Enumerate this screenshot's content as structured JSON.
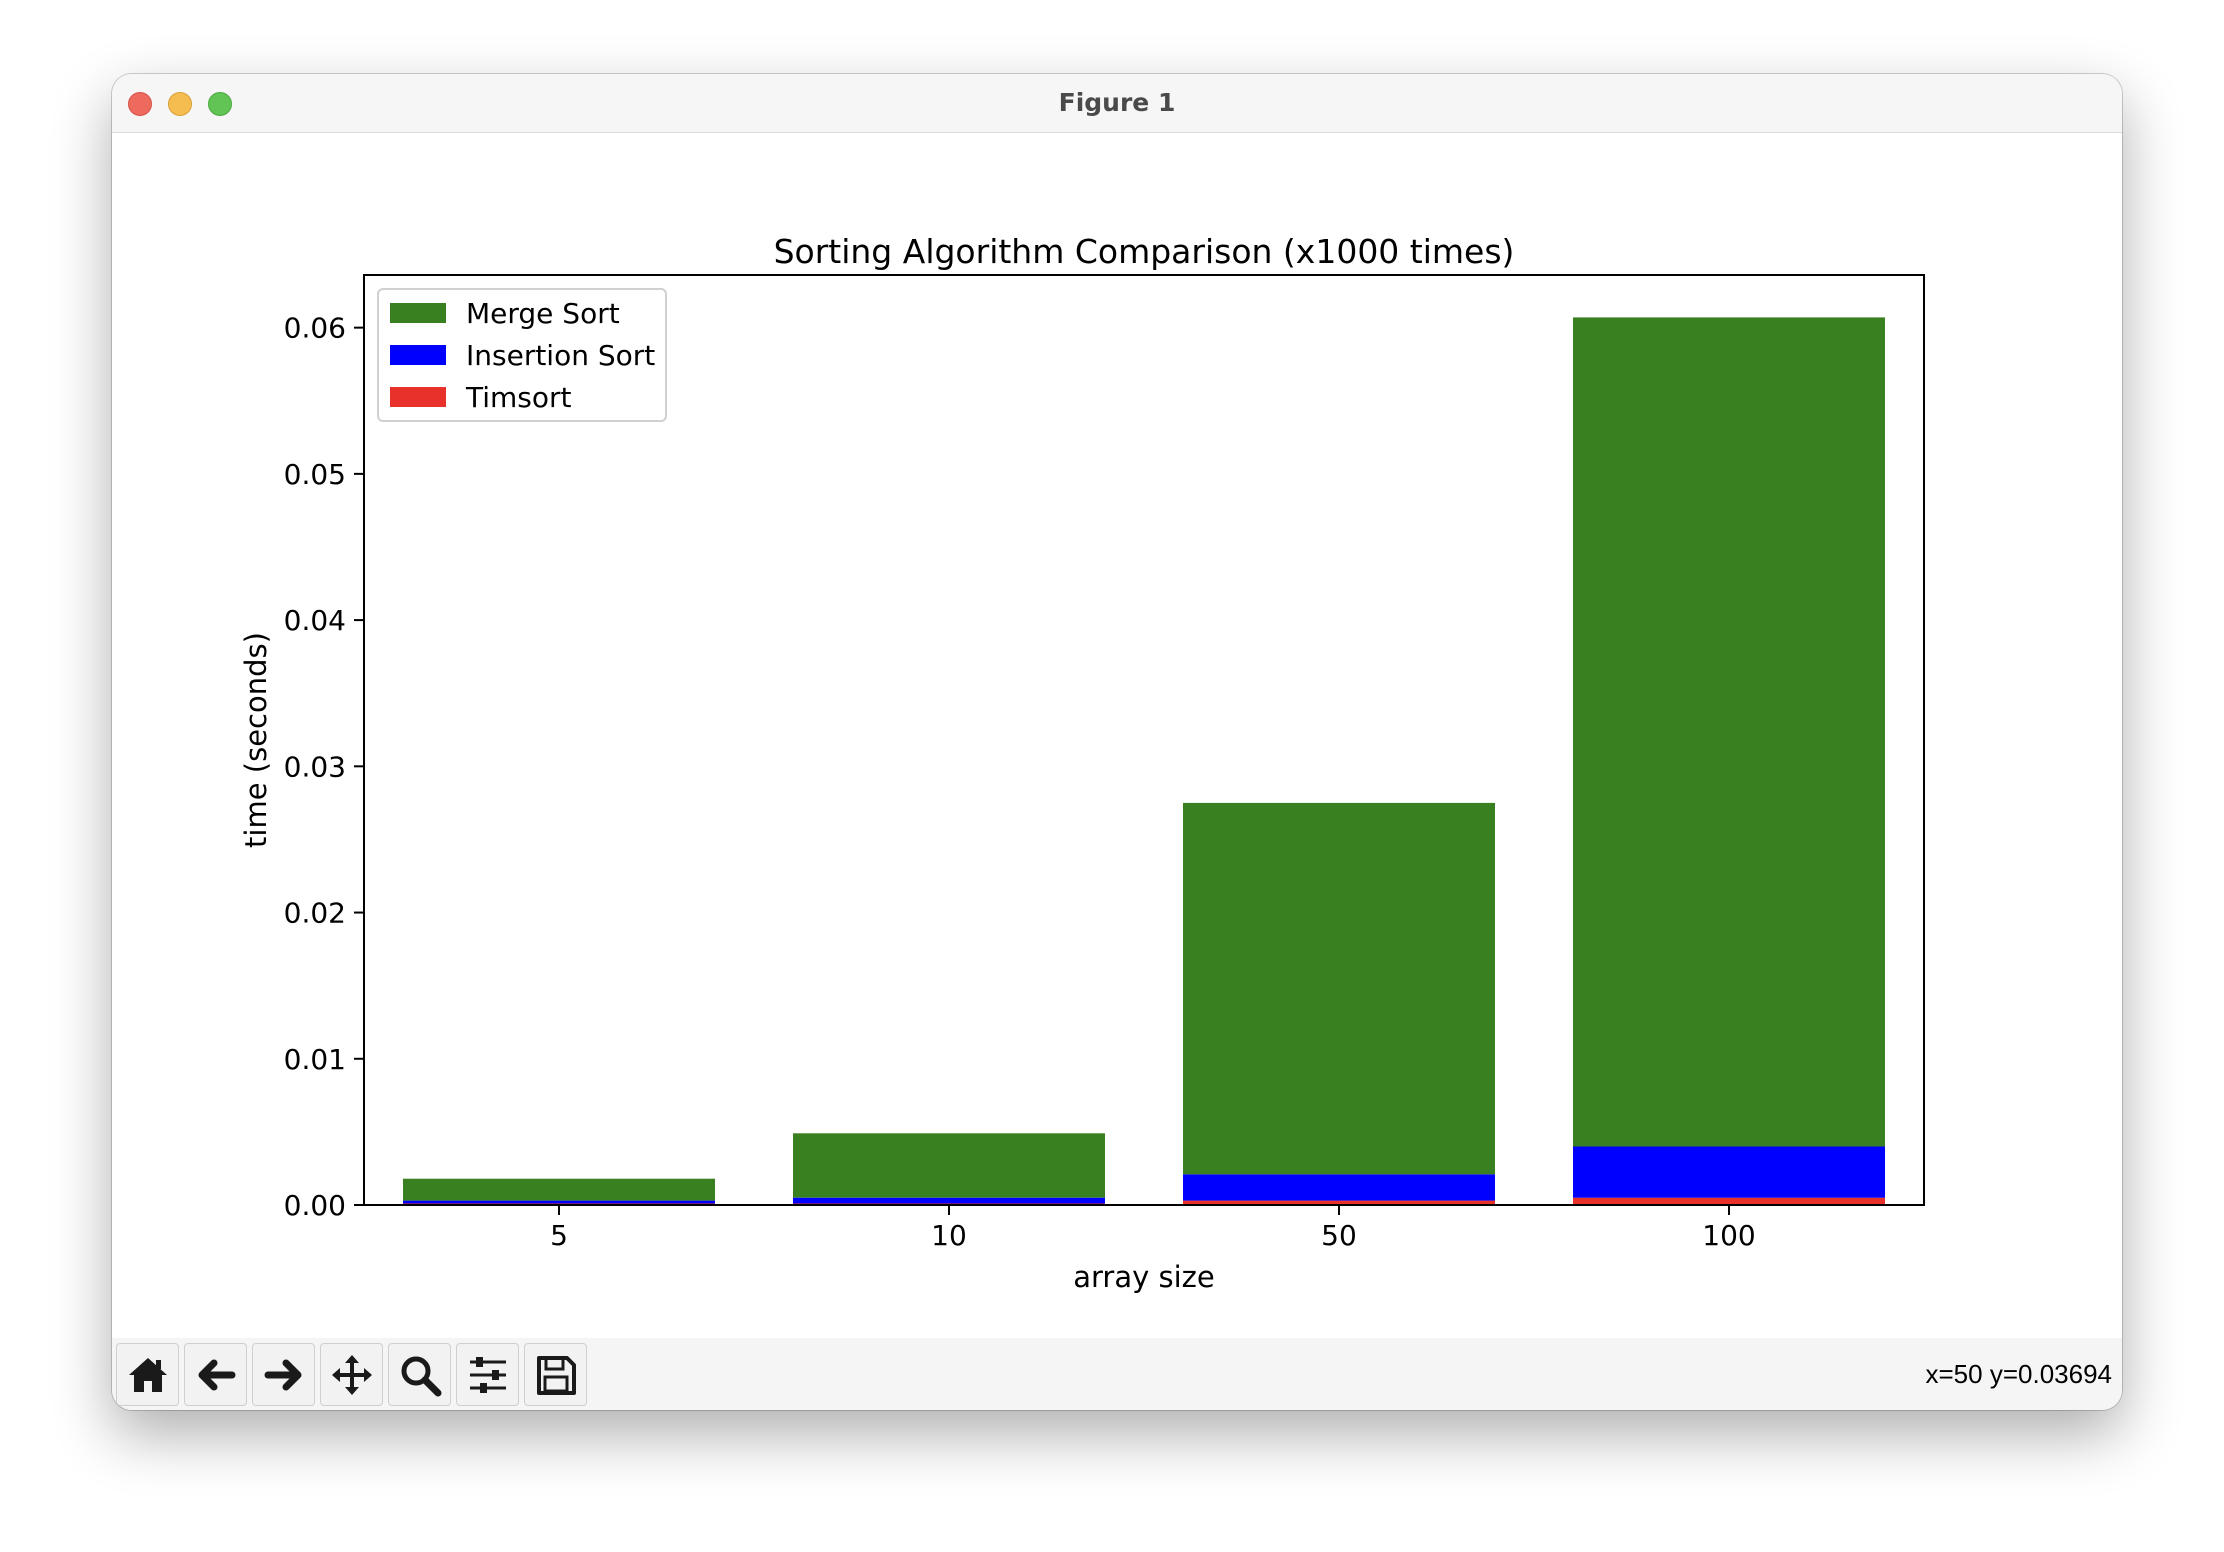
{
  "window": {
    "title": "Figure 1"
  },
  "chart_data": {
    "type": "bar",
    "stacked": true,
    "title": "Sorting Algorithm Comparison (x1000 times)",
    "xlabel": "array size",
    "ylabel": "time (seconds)",
    "categories": [
      "5",
      "10",
      "50",
      "100"
    ],
    "ylim": [
      0,
      0.0636
    ],
    "yticks": [
      "0.00",
      "0.01",
      "0.02",
      "0.03",
      "0.04",
      "0.05",
      "0.06"
    ],
    "grid": false,
    "legend_position": "upper-left",
    "series": [
      {
        "name": "Timsort",
        "color": "#e8312a",
        "values": [
          0.0001,
          0.0001,
          0.0003,
          0.0005
        ]
      },
      {
        "name": "Insertion Sort",
        "color": "#0000ff",
        "values": [
          0.0002,
          0.0004,
          0.0018,
          0.0035
        ]
      },
      {
        "name": "Merge Sort",
        "color": "#398020",
        "values": [
          0.0015,
          0.0044,
          0.0254,
          0.0567
        ]
      }
    ],
    "legend_order": [
      "Merge Sort",
      "Insertion Sort",
      "Timsort"
    ]
  },
  "toolbar": {
    "buttons": [
      {
        "name": "home-button",
        "icon": "home-icon"
      },
      {
        "name": "back-button",
        "icon": "arrow-left-icon"
      },
      {
        "name": "forward-button",
        "icon": "arrow-right-icon"
      },
      {
        "name": "pan-button",
        "icon": "move-icon"
      },
      {
        "name": "zoom-button",
        "icon": "magnifier-icon"
      },
      {
        "name": "configure-subplots-button",
        "icon": "sliders-icon"
      },
      {
        "name": "save-button",
        "icon": "floppy-disk-icon"
      }
    ],
    "coordinates": "x=50 y=0.03694"
  }
}
